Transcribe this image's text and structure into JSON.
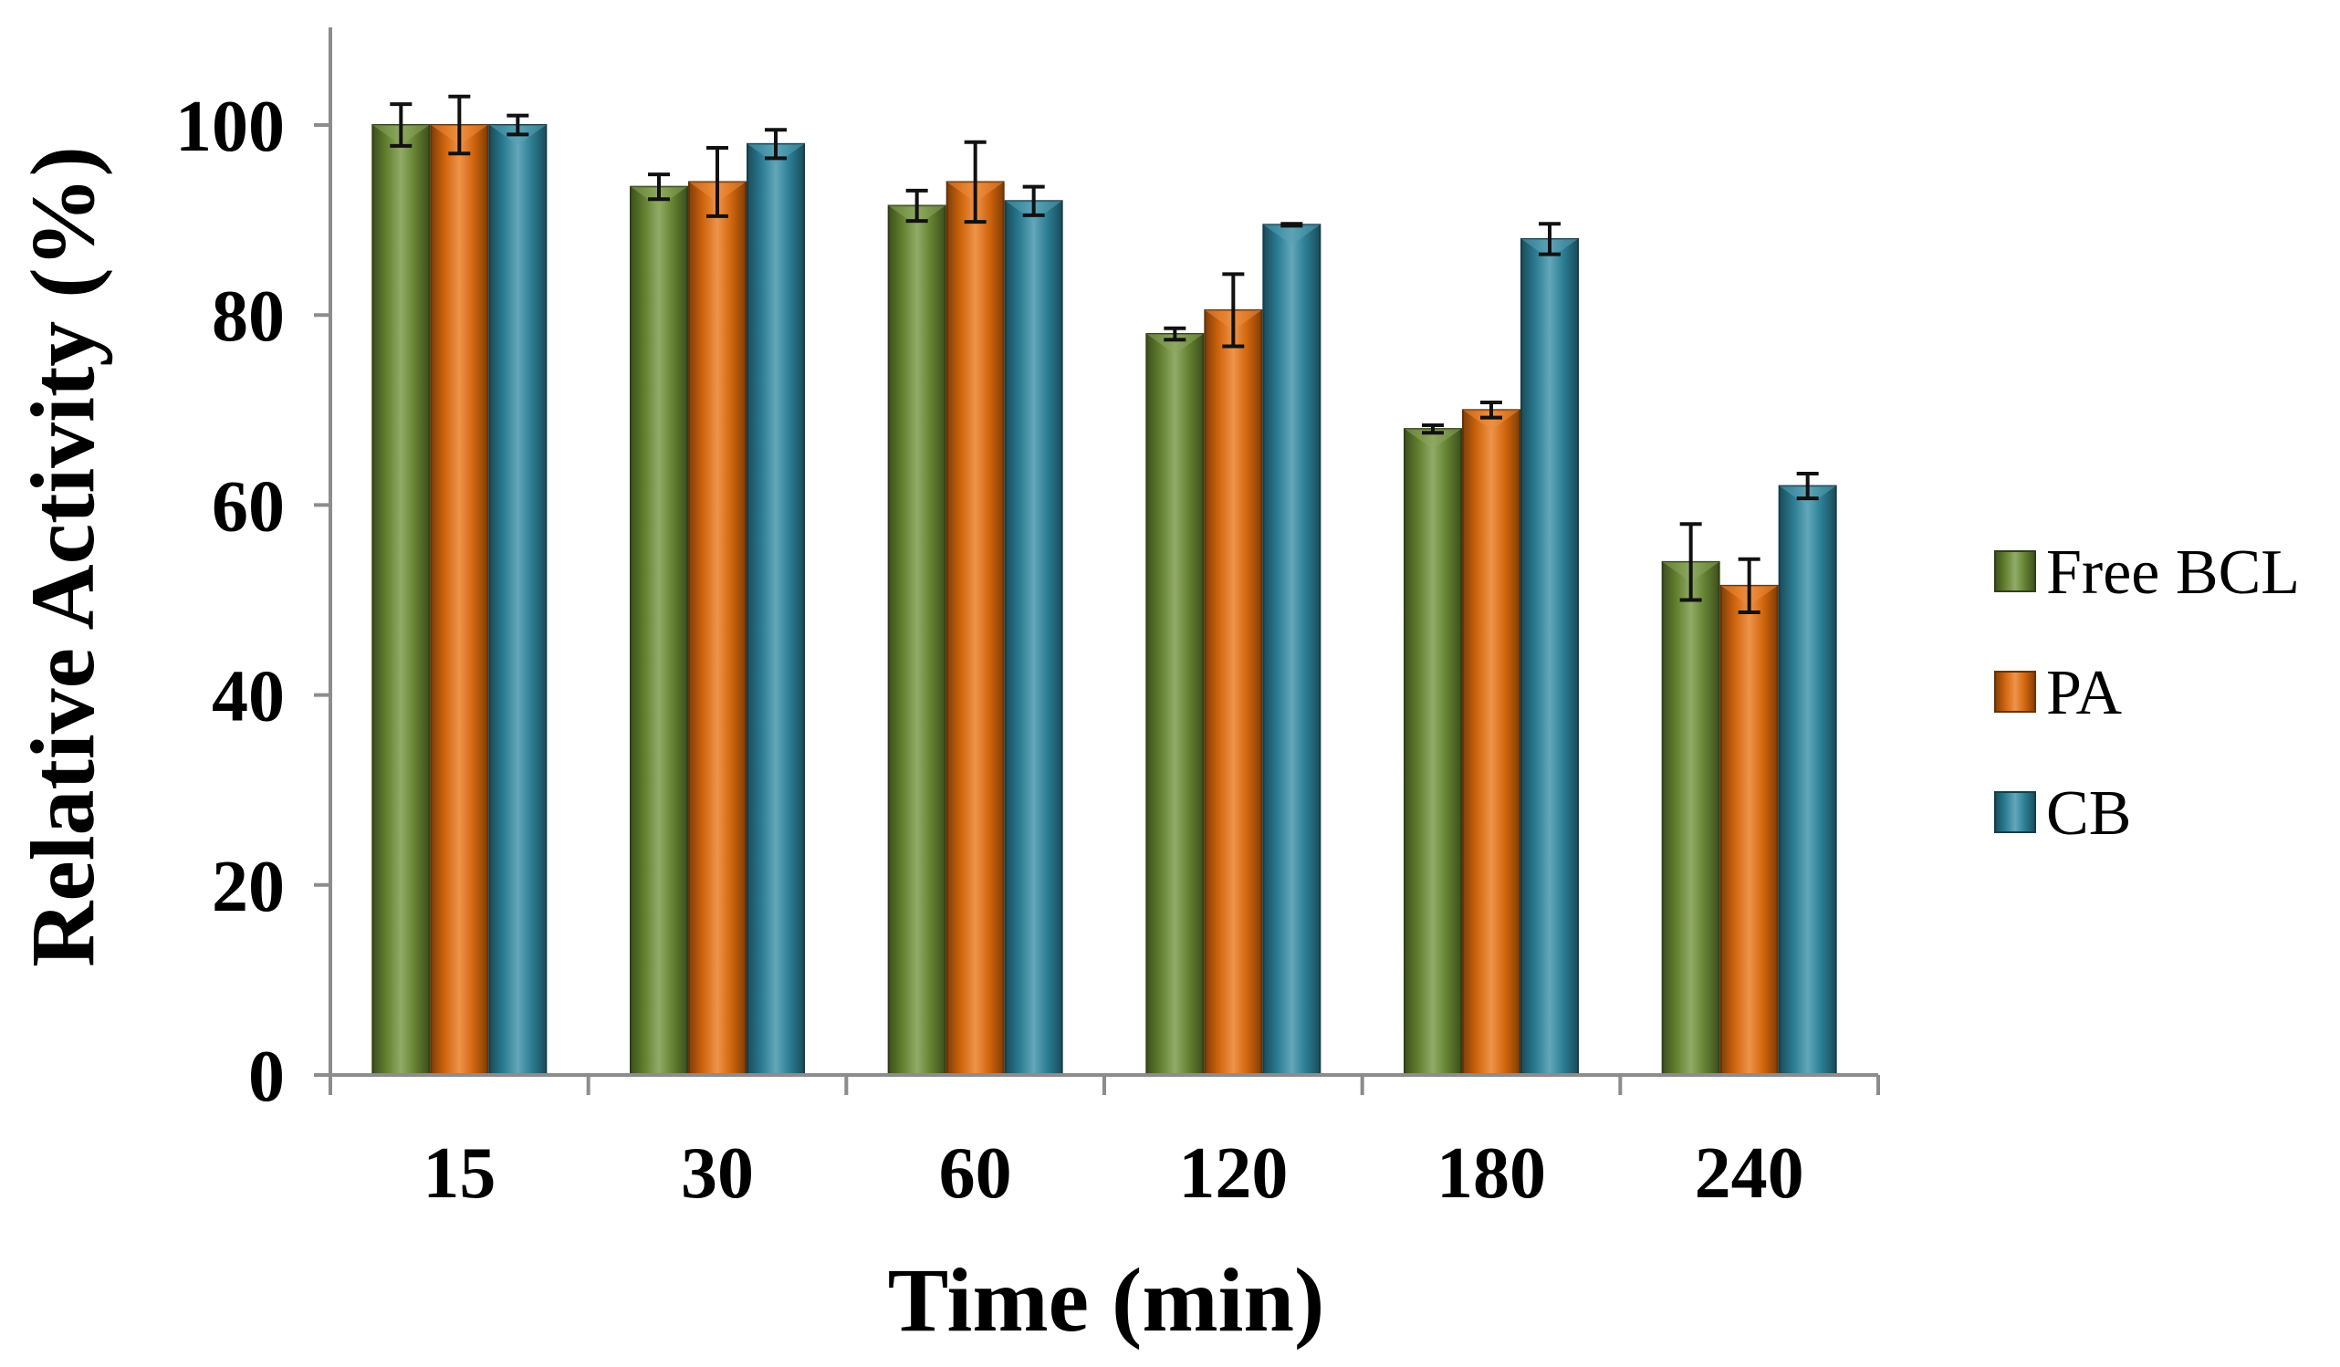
{
  "chart_data": {
    "type": "bar",
    "title": "",
    "xlabel": "Time (min)",
    "ylabel": "Relative Activity (%)",
    "ylim": [
      0,
      110
    ],
    "yticks": [
      0,
      20,
      40,
      60,
      80,
      100
    ],
    "categories": [
      "15",
      "30",
      "60",
      "120",
      "180",
      "240"
    ],
    "series": [
      {
        "name": "Free BCL",
        "color": "#6e8f35",
        "values": [
          100,
          93.5,
          91.5,
          78,
          68,
          54
        ],
        "errors": [
          2.2,
          1.3,
          1.6,
          0.6,
          0.4,
          4
        ]
      },
      {
        "name": "PA",
        "color": "#e8700e",
        "values": [
          100,
          94,
          94,
          80.5,
          70,
          51.5
        ],
        "errors": [
          3,
          3.6,
          4.2,
          3.8,
          0.8,
          2.8
        ]
      },
      {
        "name": "CB",
        "color": "#2f8aa3",
        "values": [
          100,
          98,
          92,
          89.5,
          88,
          62
        ],
        "errors": [
          1,
          1.5,
          1.5,
          0.1,
          1.6,
          1.3
        ]
      }
    ],
    "grid": false,
    "legend_position": "right"
  }
}
